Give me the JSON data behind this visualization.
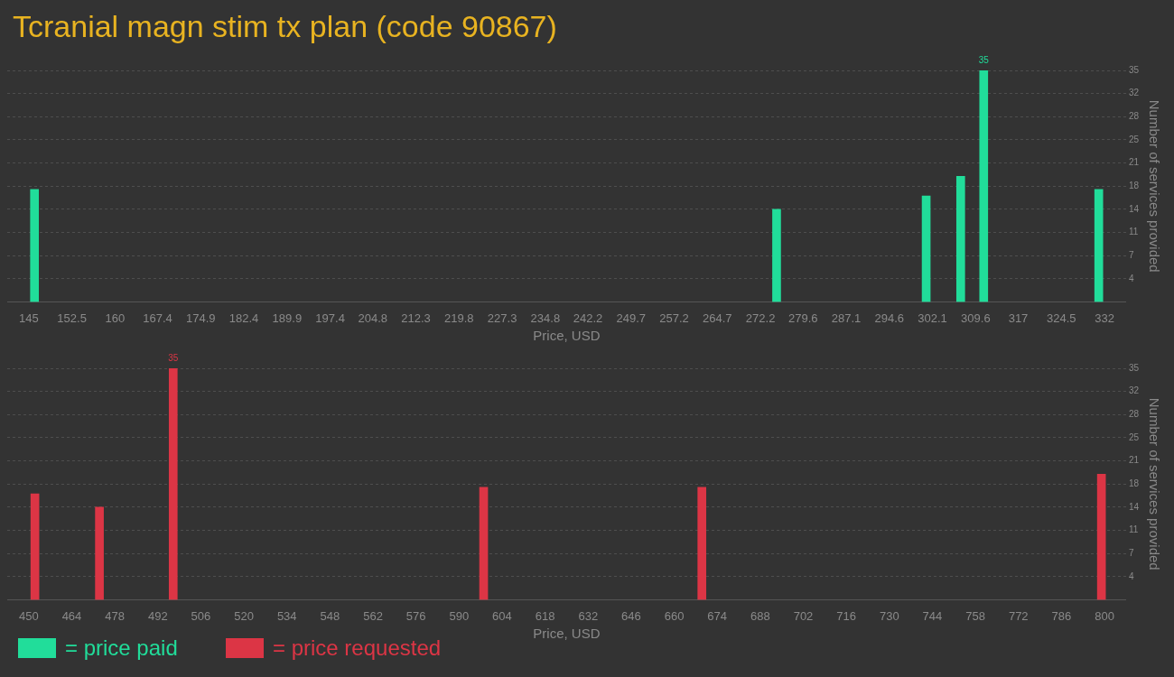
{
  "chart_data": [
    {
      "type": "bar",
      "title": "Tcranial magn stim tx plan (code 90867)",
      "xlabel": "Price, USD",
      "ylabel": "Number of services provided",
      "series": [
        {
          "name": "= price paid",
          "color": "#21dd9a",
          "x": [
            146,
            275,
            301,
            307,
            311,
            331
          ],
          "values": [
            17,
            14,
            16,
            19,
            35,
            17
          ],
          "value_labels": [
            null,
            null,
            null,
            null,
            "35",
            null
          ]
        }
      ],
      "xlim": [
        145,
        332
      ],
      "xticks": [
        145,
        152.5,
        160,
        167.4,
        174.9,
        182.4,
        189.9,
        197.4,
        204.8,
        212.3,
        219.8,
        227.3,
        234.8,
        242.2,
        249.7,
        257.2,
        264.7,
        272.2,
        279.6,
        287.1,
        294.6,
        302.1,
        309.6,
        317,
        324.5,
        332
      ],
      "ylim": [
        0,
        35
      ],
      "yticks": [
        {
          "value": 3.5,
          "label": "4"
        },
        7,
        {
          "value": 10.5,
          "label": "11"
        },
        14,
        {
          "value": 17.5,
          "label": "18"
        },
        21,
        {
          "value": 24.5,
          "label": "25"
        },
        28,
        {
          "value": 31.5,
          "label": "32"
        },
        35
      ],
      "grid": "y",
      "legend": "bottom left"
    },
    {
      "type": "bar",
      "xlabel": "Price, USD",
      "ylabel": "Number of services provided",
      "series": [
        {
          "name": "= price requested",
          "color": "#dc3545",
          "x": [
            452,
            473,
            497,
            598,
            669,
            799
          ],
          "values": [
            16,
            14,
            35,
            17,
            17,
            19
          ],
          "value_labels": [
            null,
            null,
            "35",
            null,
            null,
            null
          ]
        }
      ],
      "xlim": [
        450,
        800
      ],
      "xticks": [
        450,
        464,
        478,
        492,
        506,
        520,
        534,
        548,
        562,
        576,
        590,
        604,
        618,
        632,
        646,
        660,
        674,
        688,
        702,
        716,
        730,
        744,
        758,
        772,
        786,
        800
      ],
      "ylim": [
        0,
        35
      ],
      "yticks": [
        {
          "value": 3.5,
          "label": "4"
        },
        7,
        {
          "value": 10.5,
          "label": "11"
        },
        14,
        {
          "value": 17.5,
          "label": "18"
        },
        21,
        {
          "value": 24.5,
          "label": "25"
        },
        28,
        {
          "value": 31.5,
          "label": "32"
        },
        35
      ],
      "grid": "y",
      "legend": "bottom left"
    }
  ]
}
